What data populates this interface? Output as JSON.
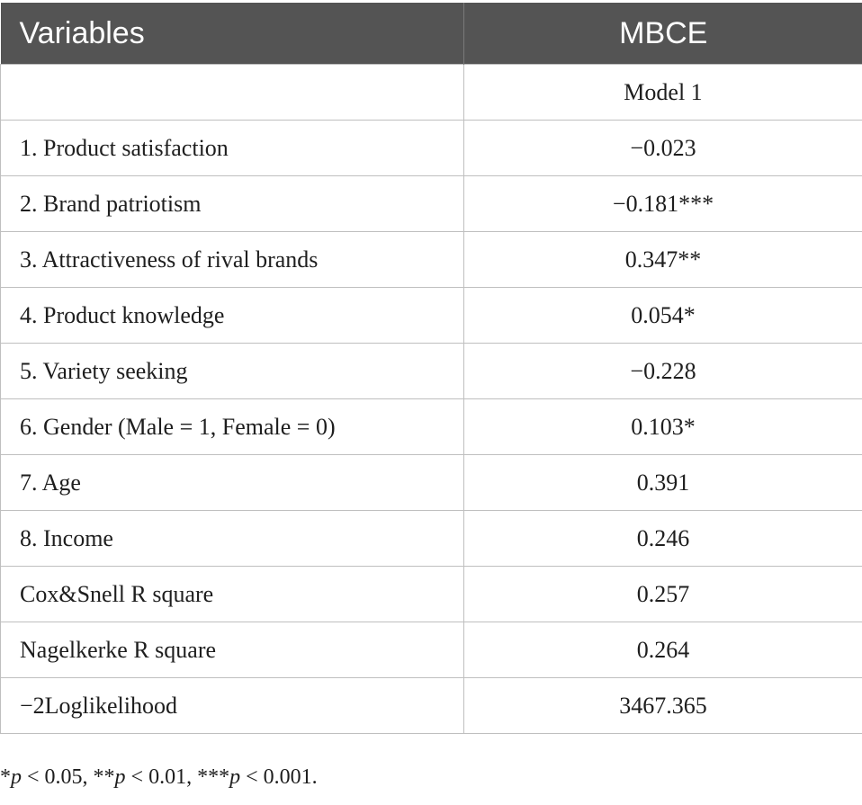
{
  "header": {
    "col1": "Variables",
    "col2": "MBCE"
  },
  "subheader": {
    "col1": "",
    "col2": "Model 1"
  },
  "rows": [
    {
      "label": "1. Product satisfaction",
      "value": "−0.023"
    },
    {
      "label": "2. Brand patriotism",
      "value": "−0.181***"
    },
    {
      "label": "3. Attractiveness of rival brands",
      "value": "0.347**"
    },
    {
      "label": "4. Product knowledge",
      "value": "0.054*"
    },
    {
      "label": "5. Variety seeking",
      "value": "−0.228"
    },
    {
      "label": "6. Gender (Male = 1, Female = 0)",
      "value": "0.103*"
    },
    {
      "label": "7. Age",
      "value": "0.391"
    },
    {
      "label": "8. Income",
      "value": "0.246"
    },
    {
      "label": "Cox&Snell R square",
      "value": "0.257"
    },
    {
      "label": "Nagelkerke R square",
      "value": "0.264"
    },
    {
      "label": "−2Loglikelihood",
      "value": "3467.365"
    }
  ],
  "footnote": {
    "stars1": "*",
    "p1": "p",
    "t1": " < 0.05, ",
    "stars2": "**",
    "p2": "p",
    "t2": " < 0.01, ",
    "stars3": "***",
    "p3": "p",
    "t3": " < 0.001."
  }
}
